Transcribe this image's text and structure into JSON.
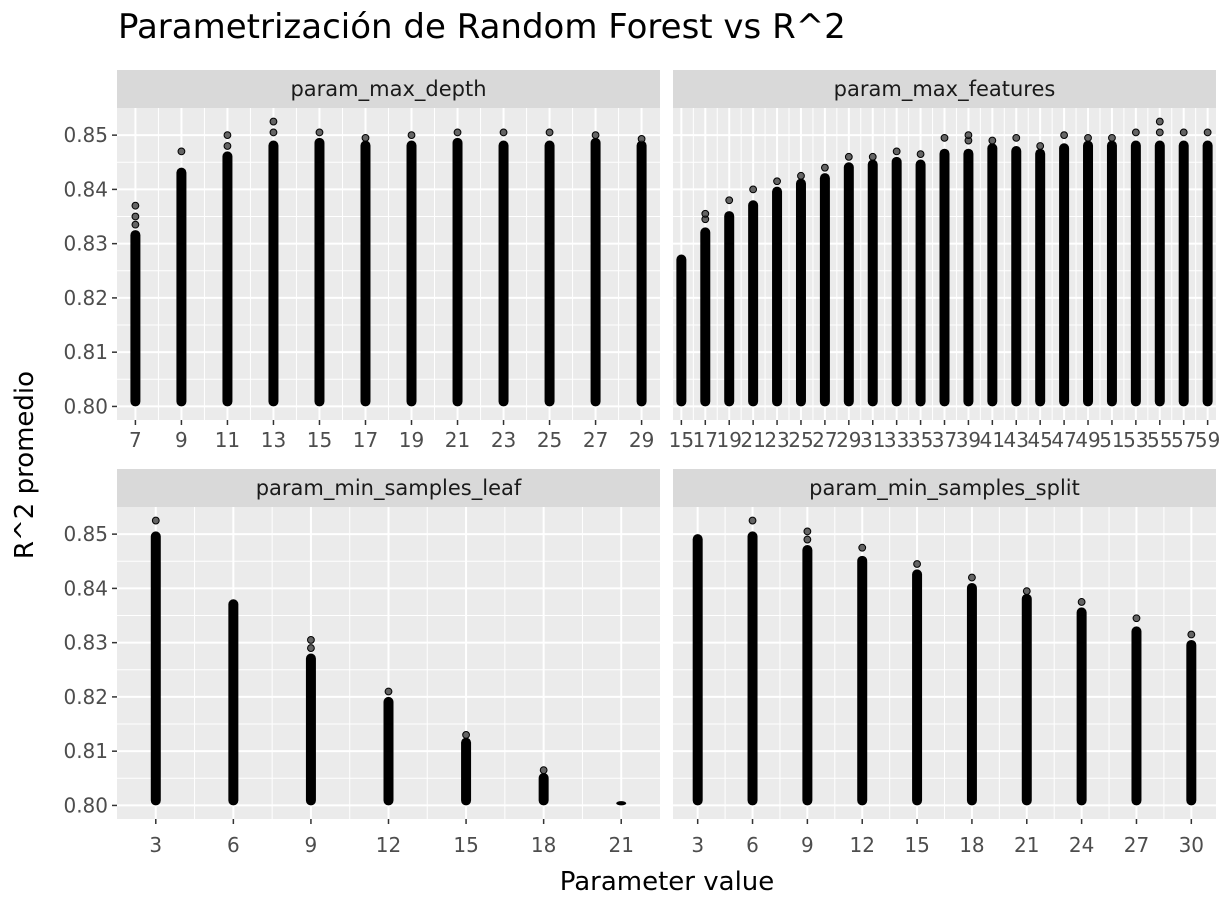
{
  "chart_data": {
    "type": "scatter",
    "title": "Parametrización de Random Forest vs R^2",
    "xlabel": "Parameter value",
    "ylabel": "R^2 promedio",
    "ylim": [
      0.7975,
      0.855
    ],
    "yticks": [
      0.8,
      0.81,
      0.82,
      0.83,
      0.84,
      0.85
    ],
    "ytick_labels": [
      "0.80",
      "0.81",
      "0.82",
      "0.83",
      "0.84",
      "0.85"
    ],
    "grid": true,
    "point_color": "#000000",
    "panel_bg": "#ebebeb",
    "strip_bg": "#d9d9d9",
    "facets": [
      {
        "name": "param_max_depth",
        "xlim": [
          6.2,
          29.8
        ],
        "xticks": [
          7,
          9,
          11,
          13,
          15,
          17,
          19,
          21,
          23,
          25,
          27,
          29
        ],
        "xtick_labels": [
          "7",
          "9",
          "11",
          "13",
          "15",
          "17",
          "19",
          "21",
          "23",
          "25",
          "27",
          "29"
        ],
        "series": [
          {
            "x": 7,
            "min": 0.8,
            "max": 0.8325,
            "outliers": [
              0.8335,
              0.835,
              0.837
            ]
          },
          {
            "x": 9,
            "min": 0.8,
            "max": 0.844,
            "outliers": [
              0.847
            ]
          },
          {
            "x": 11,
            "min": 0.8,
            "max": 0.847,
            "outliers": [
              0.848,
              0.85
            ]
          },
          {
            "x": 13,
            "min": 0.8,
            "max": 0.849,
            "outliers": [
              0.8505,
              0.8525
            ]
          },
          {
            "x": 15,
            "min": 0.8,
            "max": 0.8495,
            "outliers": [
              0.8505
            ]
          },
          {
            "x": 17,
            "min": 0.8,
            "max": 0.849,
            "outliers": [
              0.8495
            ]
          },
          {
            "x": 19,
            "min": 0.8,
            "max": 0.849,
            "outliers": [
              0.85
            ]
          },
          {
            "x": 21,
            "min": 0.8,
            "max": 0.8495,
            "outliers": [
              0.8505
            ]
          },
          {
            "x": 23,
            "min": 0.8,
            "max": 0.849,
            "outliers": [
              0.8505
            ]
          },
          {
            "x": 25,
            "min": 0.8,
            "max": 0.849,
            "outliers": [
              0.8505
            ]
          },
          {
            "x": 27,
            "min": 0.8,
            "max": 0.8495,
            "outliers": [
              0.85
            ]
          },
          {
            "x": 29,
            "min": 0.8,
            "max": 0.849,
            "outliers": [
              0.8493
            ]
          }
        ]
      },
      {
        "name": "param_max_features",
        "xlim": [
          14.3,
          59.7
        ],
        "xticks": [
          15,
          17,
          19,
          21,
          23,
          25,
          27,
          29,
          31,
          33,
          35,
          37,
          39,
          41,
          43,
          45,
          47,
          49,
          51,
          53,
          55,
          57,
          59
        ],
        "xtick_labels": [
          "15",
          "17",
          "19",
          "21",
          "23",
          "25",
          "27",
          "29",
          "31",
          "33",
          "35",
          "37",
          "39",
          "41",
          "43",
          "45",
          "47",
          "49",
          "51",
          "53",
          "55",
          "57",
          "59"
        ],
        "series": [
          {
            "x": 15,
            "min": 0.8,
            "max": 0.828,
            "outliers": []
          },
          {
            "x": 17,
            "min": 0.8,
            "max": 0.833,
            "outliers": [
              0.8345,
              0.8355
            ]
          },
          {
            "x": 19,
            "min": 0.8,
            "max": 0.836,
            "outliers": [
              0.838
            ]
          },
          {
            "x": 21,
            "min": 0.8,
            "max": 0.838,
            "outliers": [
              0.84
            ]
          },
          {
            "x": 23,
            "min": 0.8,
            "max": 0.8405,
            "outliers": [
              0.8415
            ]
          },
          {
            "x": 25,
            "min": 0.8,
            "max": 0.842,
            "outliers": [
              0.8425
            ]
          },
          {
            "x": 27,
            "min": 0.8,
            "max": 0.843,
            "outliers": [
              0.844
            ]
          },
          {
            "x": 29,
            "min": 0.8,
            "max": 0.845,
            "outliers": [
              0.846
            ]
          },
          {
            "x": 31,
            "min": 0.8,
            "max": 0.8455,
            "outliers": [
              0.846
            ]
          },
          {
            "x": 33,
            "min": 0.8,
            "max": 0.846,
            "outliers": [
              0.847
            ]
          },
          {
            "x": 35,
            "min": 0.8,
            "max": 0.8455,
            "outliers": [
              0.8465
            ]
          },
          {
            "x": 37,
            "min": 0.8,
            "max": 0.8475,
            "outliers": [
              0.8495
            ]
          },
          {
            "x": 39,
            "min": 0.8,
            "max": 0.8475,
            "outliers": [
              0.849,
              0.85
            ]
          },
          {
            "x": 41,
            "min": 0.8,
            "max": 0.8485,
            "outliers": [
              0.849
            ]
          },
          {
            "x": 43,
            "min": 0.8,
            "max": 0.848,
            "outliers": [
              0.8495
            ]
          },
          {
            "x": 45,
            "min": 0.8,
            "max": 0.8475,
            "outliers": [
              0.848
            ]
          },
          {
            "x": 47,
            "min": 0.8,
            "max": 0.8485,
            "outliers": [
              0.85
            ]
          },
          {
            "x": 49,
            "min": 0.8,
            "max": 0.849,
            "outliers": [
              0.8495
            ]
          },
          {
            "x": 51,
            "min": 0.8,
            "max": 0.849,
            "outliers": [
              0.8495
            ]
          },
          {
            "x": 53,
            "min": 0.8,
            "max": 0.849,
            "outliers": [
              0.8505
            ]
          },
          {
            "x": 55,
            "min": 0.8,
            "max": 0.849,
            "outliers": [
              0.8505,
              0.8525
            ]
          },
          {
            "x": 57,
            "min": 0.8,
            "max": 0.849,
            "outliers": [
              0.8505
            ]
          },
          {
            "x": 59,
            "min": 0.8,
            "max": 0.849,
            "outliers": [
              0.8505
            ]
          }
        ]
      },
      {
        "name": "param_min_samples_leaf",
        "xlim": [
          1.5,
          22.5
        ],
        "xticks": [
          3,
          6,
          9,
          12,
          15,
          18,
          21
        ],
        "xtick_labels": [
          "3",
          "6",
          "9",
          "12",
          "15",
          "18",
          "21"
        ],
        "series": [
          {
            "x": 3,
            "min": 0.8,
            "max": 0.8505,
            "outliers": [
              0.8525
            ]
          },
          {
            "x": 6,
            "min": 0.8,
            "max": 0.838,
            "outliers": []
          },
          {
            "x": 9,
            "min": 0.8,
            "max": 0.828,
            "outliers": [
              0.829,
              0.8305
            ]
          },
          {
            "x": 12,
            "min": 0.8,
            "max": 0.82,
            "outliers": [
              0.821
            ]
          },
          {
            "x": 15,
            "min": 0.8,
            "max": 0.8125,
            "outliers": [
              0.813
            ]
          },
          {
            "x": 18,
            "min": 0.8,
            "max": 0.806,
            "outliers": [
              0.8065
            ]
          },
          {
            "x": 21,
            "min": 0.8,
            "max": 0.8008,
            "outliers": []
          }
        ]
      },
      {
        "name": "param_min_samples_split",
        "xlim": [
          1.65,
          31.35
        ],
        "xticks": [
          3,
          6,
          9,
          12,
          15,
          18,
          21,
          24,
          27,
          30
        ],
        "xtick_labels": [
          "3",
          "6",
          "9",
          "12",
          "15",
          "18",
          "21",
          "24",
          "27",
          "30"
        ],
        "series": [
          {
            "x": 3,
            "min": 0.8,
            "max": 0.85,
            "outliers": []
          },
          {
            "x": 6,
            "min": 0.8,
            "max": 0.8505,
            "outliers": [
              0.8525
            ]
          },
          {
            "x": 9,
            "min": 0.8,
            "max": 0.848,
            "outliers": [
              0.849,
              0.8505
            ]
          },
          {
            "x": 12,
            "min": 0.8,
            "max": 0.846,
            "outliers": [
              0.8475
            ]
          },
          {
            "x": 15,
            "min": 0.8,
            "max": 0.8435,
            "outliers": [
              0.8445
            ]
          },
          {
            "x": 18,
            "min": 0.8,
            "max": 0.841,
            "outliers": [
              0.842
            ]
          },
          {
            "x": 21,
            "min": 0.8,
            "max": 0.839,
            "outliers": [
              0.8395
            ]
          },
          {
            "x": 24,
            "min": 0.8,
            "max": 0.8365,
            "outliers": [
              0.8375
            ]
          },
          {
            "x": 27,
            "min": 0.8,
            "max": 0.833,
            "outliers": [
              0.8345
            ]
          },
          {
            "x": 30,
            "min": 0.8,
            "max": 0.8305,
            "outliers": [
              0.8315
            ]
          }
        ]
      }
    ]
  }
}
